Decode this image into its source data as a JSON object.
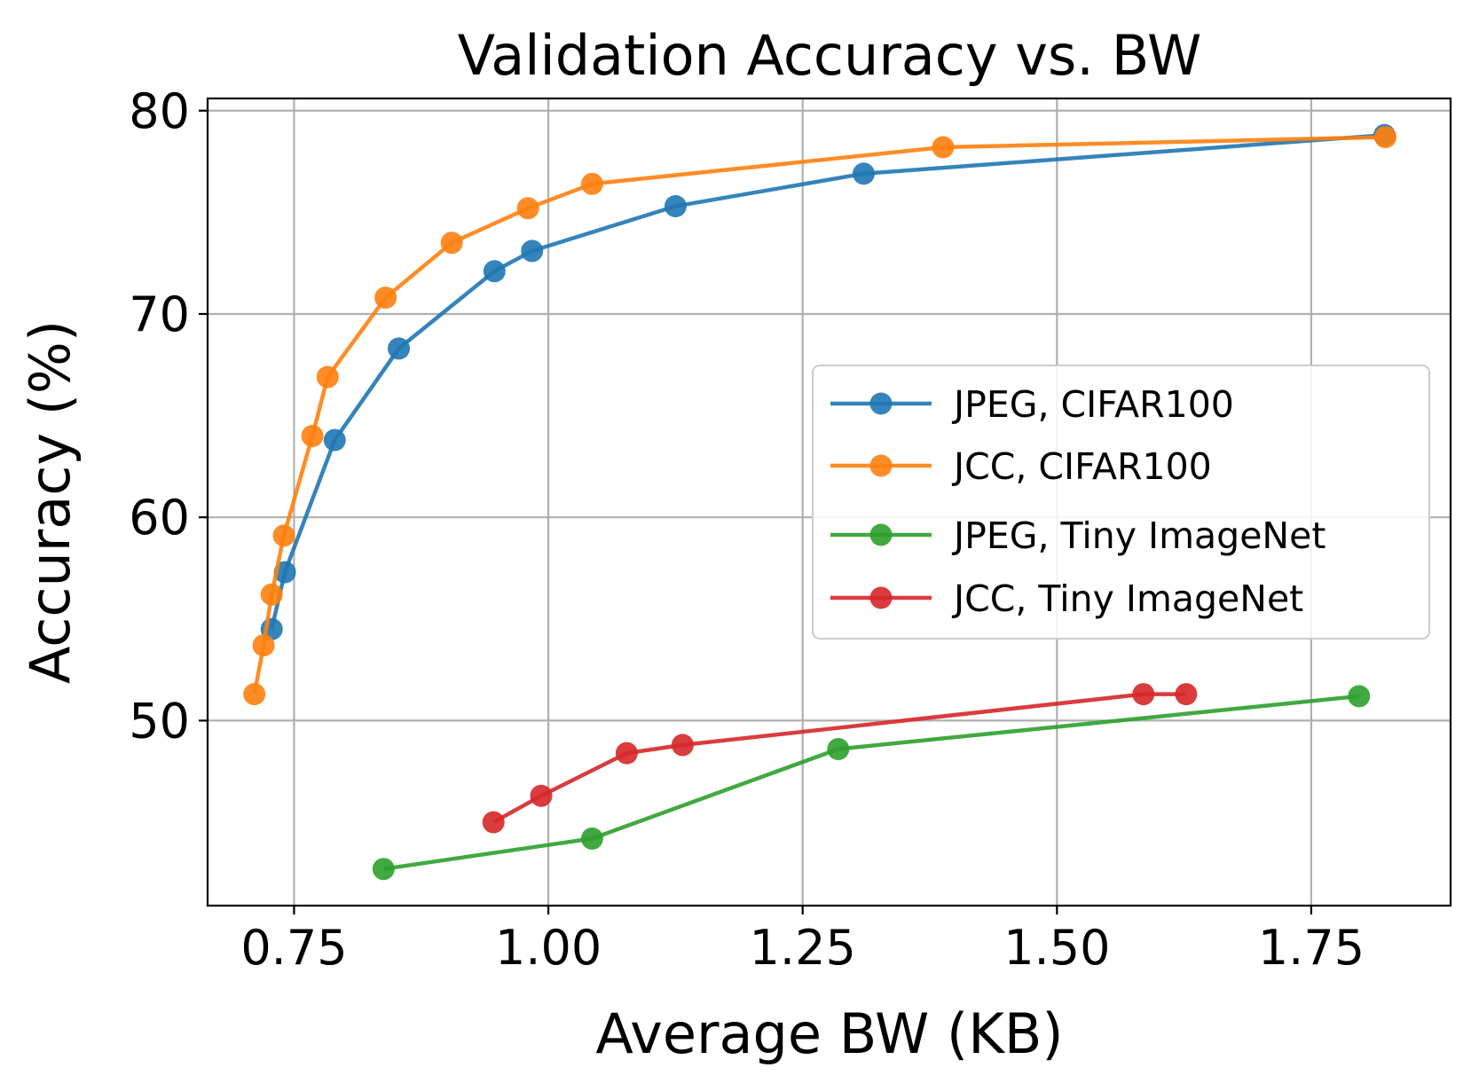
{
  "chart_data": {
    "type": "line",
    "title": "Validation Accuracy vs. BW",
    "xlabel": "Average BW (KB)",
    "ylabel": "Accuracy (%)",
    "xlim": [
      0.665,
      1.887
    ],
    "ylim": [
      40.9,
      80.6
    ],
    "xticks": [
      0.75,
      1.0,
      1.25,
      1.5,
      1.75
    ],
    "xtick_labels": [
      "0.75",
      "1.00",
      "1.25",
      "1.50",
      "1.75"
    ],
    "yticks": [
      50,
      60,
      70,
      80
    ],
    "ytick_labels": [
      "50",
      "60",
      "70",
      "80"
    ],
    "grid": true,
    "legend_position": "center-right",
    "series": [
      {
        "name": "JPEG, CIFAR100",
        "color": "#1f77b4",
        "x": [
          0.728,
          0.741,
          0.79,
          0.853,
          0.947,
          0.984,
          1.125,
          1.31,
          1.822
        ],
        "y": [
          54.5,
          57.3,
          63.8,
          68.3,
          72.1,
          73.1,
          75.3,
          76.9,
          78.8
        ]
      },
      {
        "name": "JCC, CIFAR100",
        "color": "#ff7f0e",
        "x": [
          0.711,
          0.72,
          0.728,
          0.74,
          0.768,
          0.783,
          0.84,
          0.905,
          0.98,
          1.043,
          1.388,
          1.823
        ],
        "y": [
          51.3,
          53.7,
          56.2,
          59.1,
          64.0,
          66.9,
          70.8,
          73.5,
          75.2,
          76.4,
          78.2,
          78.7
        ]
      },
      {
        "name": "JPEG, Tiny ImageNet",
        "color": "#2ca02c",
        "x": [
          0.838,
          1.043,
          1.285,
          1.797
        ],
        "y": [
          42.7,
          44.2,
          48.6,
          51.2
        ]
      },
      {
        "name": "JCC, Tiny ImageNet",
        "color": "#d62728",
        "x": [
          0.946,
          0.993,
          1.077,
          1.132,
          1.585,
          1.627
        ],
        "y": [
          45.0,
          46.3,
          48.4,
          48.8,
          51.3,
          51.3
        ]
      }
    ]
  }
}
